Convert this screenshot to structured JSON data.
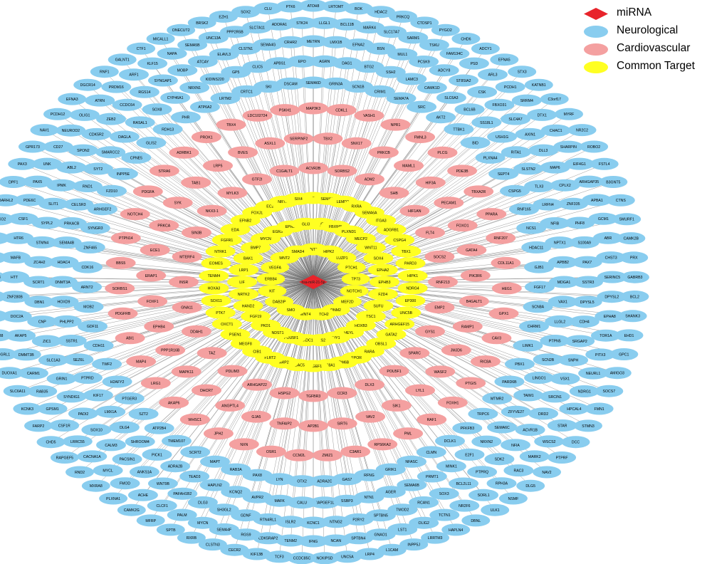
{
  "colors": {
    "mirna": "#e8242b",
    "neurological": "#89cdef",
    "cardiovascular": "#f4a0a0",
    "common": "#ffff22",
    "edge": "#6b6b6b"
  },
  "legend": [
    {
      "key": "mirna",
      "label": "miRNA",
      "shape": "diamond"
    },
    {
      "key": "neurological",
      "label": "Neurological",
      "shape": "ellipse"
    },
    {
      "key": "cardiovascular",
      "label": "Cardiovascular",
      "shape": "ellipse"
    },
    {
      "key": "common",
      "label": "Common Target",
      "shape": "ellipse"
    }
  ],
  "network": {
    "center": {
      "label": "hsa-miR-21-5p"
    },
    "common": [
      "WNT7B",
      "HIPK2",
      "LUZP1",
      "PTCH1",
      "TP73",
      "NOTCH1",
      "MEF2D",
      "DNM2",
      "NOTCH2",
      "WNT4",
      "SMO",
      "DAB2IP",
      "KIT",
      "ERBB4",
      "VEGFA",
      "WNT2",
      "SMAD4",
      "AQP1",
      "FBXW8",
      "PLXND1",
      "MECP2",
      "WNT11",
      "SOX4",
      "EPHA2",
      "EPHB3",
      "FZD4",
      "SUFU",
      "TSC1",
      "HOXB3",
      "HEYL",
      "THY1",
      "FRS2",
      "PLXDC1",
      "POU5F1",
      "NDST1",
      "PKD1",
      "FGF19",
      "HAND2",
      "NRTK2",
      "LIF",
      "LRP1",
      "BAK1",
      "BMP7",
      "MYCN",
      "EGR3",
      "EPHB2",
      "GLI3",
      "WNT3A",
      "SEMA3E",
      "LEMD2",
      "RXRA",
      "SEMA6A",
      "ITGA3",
      "ADGRB1",
      "CSPG4",
      "TBX1",
      "PARD3",
      "HIPK1",
      "NDRG4",
      "EP300",
      "UNC5B",
      "ARHGEF15",
      "GATA2",
      "OBSL1",
      "RARA",
      "EPOR",
      "KDM6B",
      "SLC8A1",
      "RAPGEF1",
      "HDAC5",
      "NRP2",
      "FLRT2",
      "CIB1",
      "MEGF8",
      "PSEN1",
      "OXCT1",
      "PTK7",
      "SOX11",
      "HOXA3",
      "TENM4",
      "EOMES",
      "NTRK1",
      "FGFR1",
      "EDA",
      "EFNB2",
      "FOXJ1",
      "EC2",
      "NRTK3",
      "SIX4"
    ],
    "cardiovascular": [
      "ACVR2B",
      "SORBS2",
      "ADM2",
      "SHB",
      "HIF1AN",
      "FLT4",
      "SOCS2",
      "RNF213",
      "EMP2",
      "GYS1",
      "SPARC",
      "POU5F1",
      "DLX3",
      "CCR3",
      "TGFBR3",
      "HSPG2",
      "ARHGAP22",
      "PDLIM3",
      "TAZ",
      "DDAH1",
      "GNA11",
      "INSR",
      "MTERF4",
      "SIN3B",
      "NKX3-1",
      "MYLK3",
      "GTF2I",
      "C1GALT1",
      "TBX2",
      "SNX17",
      "PRKCB",
      "MAML1",
      "HIF3A",
      "PECAM1",
      "FOXO1",
      "GATA4",
      "PIK3R6",
      "B4GALT1",
      "RAMP1",
      "JMJD6",
      "WASF2",
      "LYL1",
      "SIK1",
      "VAV2",
      "SIRT6",
      "AP2B1",
      "TNFAIP2",
      "GJA5",
      "ANGPTL4",
      "DHCR7",
      "MAPK11",
      "PPP1R16B",
      "EPHB4",
      "FOXF1",
      "ERAP1",
      "ECE1",
      "PRKCA",
      "SYK",
      "TAB1",
      "LRP5",
      "BVES",
      "ASXL1",
      "SERPINF2",
      "MAP3K3",
      "CDKL1",
      "VASH1",
      "NPR1",
      "FMNL3",
      "PLCG",
      "PDE3B",
      "TBXA2R",
      "PPARA",
      "RNF207",
      "COL11A1",
      "HEG1",
      "GPX1",
      "CAV3",
      "RIC8A",
      "PTGIS",
      "FOXH1",
      "RAF1",
      "PML",
      "RPS6KA2",
      "C3AR1",
      "ZMIZ1",
      "CCM2L",
      "OSR1",
      "NXN",
      "JPH2",
      "WHSC1",
      "AKAP6",
      "LRG1",
      "MAP4",
      "ABI1",
      "PDGFRB",
      "SORBS1",
      "BBS5",
      "PTPN14",
      "NOTCH4",
      "PDGFA",
      "STRA6",
      "ADRBK1",
      "PROK1",
      "TBX4",
      "LDC102724",
      "PSKH1"
    ],
    "neurological": [
      "SEMA6D",
      "GRIN3A",
      "SCN1B",
      "CRIM1",
      "SEMA7A",
      "SRC",
      "AKT2",
      "TTBK1",
      "BID",
      "PLXNA4",
      "SEPT4",
      "CSPG5",
      "RNF165",
      "NCS1",
      "HDAC11",
      "GJB1",
      "FGF17",
      "SCN8A",
      "CHRM1",
      "LIMK1",
      "PBX1",
      "PARD6B",
      "MTMR2",
      "TRPC6",
      "PFKFB3",
      "DCLK1",
      "CLMN",
      "NFASC",
      "GRIK1",
      "RFNG",
      "GAS7",
      "ADRA2C",
      "OTX2",
      "LYN",
      "PAX8",
      "RAB3A",
      "MAPT",
      "SCRT2",
      "TMEM107",
      "ATP2B4",
      "SZT2",
      "PTGER3",
      "H2AFY2",
      "TWF2",
      "CDH11",
      "GDF11",
      "MOB2",
      "ARNT2",
      "CDK16",
      "ZNF465",
      "SYNGR3",
      "ARHGEF2",
      "FZD10",
      "INPP5E",
      "CPNE5",
      "GLIS2",
      "RDH13",
      "PHR",
      "ATP6A2",
      "LRTM2",
      "CRTC1",
      "SKI",
      "DSCAM",
      "AGRN",
      "DAG1",
      "BTG2",
      "SSH2",
      "LAMC3",
      "CAMK1D",
      "SLC6A3",
      "BCL6B",
      "SS18L1",
      "USH1G",
      "RITA1",
      "SLSTN2",
      "TLX3",
      "LRFN4",
      "NFIB",
      "NPTX1",
      "APBB2",
      "MDGA1",
      "VAX1",
      "LLGL2",
      "PTPN5",
      "SCN2B",
      "LINGO1",
      "TAIM1",
      "ZFYVE27",
      "SEMA6C",
      "NRXN2",
      "E2F1",
      "MINK1",
      "PRMT1",
      "SEMA6B",
      "AGER",
      "NTN1",
      "SSBP3",
      "RAPGEF1L",
      "CALU",
      "MAFK",
      "AVPR2",
      "KCNQ2",
      "HAPLN2",
      "TEAD3",
      "ADRA2B",
      "PICK1",
      "SHROOM4",
      "DLG4",
      "LMX1A",
      "KIF17",
      "PTPRD",
      "SEZ6L",
      "SSTR1",
      "PHLPP2",
      "HOXD9",
      "DNMT3A",
      "HDAC4",
      "SEMA4B",
      "PRKACB",
      "CELSR3",
      "RND1",
      "SYT2",
      "SMARCC2",
      "DAGLA",
      "RASAL1",
      "SOX8",
      "CYP46A1",
      "NRXN1",
      "KIDINS220",
      "GP5",
      "CLIC5",
      "APBS1",
      "EPO",
      "METRN",
      "LMX1B",
      "EFNA2",
      "BSN",
      "MUL1",
      "PCSK9",
      "ADCY8",
      "ST8SIA2",
      "CSK",
      "FBXO31",
      "SLC4A7",
      "AXIN1",
      "DLL3",
      "MAP6",
      "CPLX2",
      "ZNF335",
      "PHF8",
      "S100A9",
      "PAX7",
      "SSTR3",
      "DPYSL5",
      "CDH4",
      "SRGAP2",
      "SNPH",
      "VSX1",
      "SRCIN1",
      "DRD2",
      "ACVR1B",
      "NFIA",
      "SDK2",
      "PTPRQ",
      "BCL2L11",
      "SOX3",
      "RCAN1",
      "TMOD2",
      "SPTBN5",
      "P2RY2",
      "NTNG2",
      "KCNC1",
      "ISLR2",
      "RTN4RL1",
      "GDNF",
      "SH3GL2",
      "DLG3",
      "PAFAH1B2",
      "WNT9B",
      "ANKS1A",
      "PACSIN1",
      "CALM3",
      "SOX10",
      "PADI2",
      "SYNDIG1",
      "GRIN1",
      "SLC1A3",
      "ZIC1",
      "CNP",
      "DBN1",
      "SCRT1",
      "ZC4H2",
      "STMN4",
      "SYPL2",
      "SLIT1",
      "IPMK",
      "ABL2",
      "SPON2",
      "CDK5R2",
      "ZEB2",
      "CCDC64",
      "RGS14",
      "SYNGAP1",
      "MOBP",
      "ATCAY",
      "ELAVL3",
      "CLSTN1",
      "SEMA4G",
      "CRHR2",
      "LLGL1",
      "BCL11B",
      "MARK4",
      "SLC17A7",
      "SARM1",
      "TSKU",
      "FAM134C",
      "PSD",
      "ARL3",
      "PCDH1",
      "SRRM4",
      "DTX1",
      "CHAC1",
      "SHARPIN",
      "EIF4G1",
      "ARHGAP35",
      "APBA1",
      "GCM1",
      "ABR",
      "CHST3",
      "SERINC5",
      "DPYSL2",
      "EPHA8",
      "TOR1A",
      "PITX3",
      "NEURL1",
      "NDRG1",
      "HPCAL4",
      "STAR",
      "WSCS2",
      "MARK2",
      "RAC3",
      "RPH3A",
      "SORL1",
      "NR2F6",
      "TCTN1",
      "OLIG2",
      "LST1",
      "GNAO1",
      "SPTBN4",
      "NCAN",
      "IFNG",
      "TENM2",
      "CDK5RAP2",
      "RGS9",
      "SEMA4F",
      "MYCN",
      "PALM",
      "CLCF1",
      "ACHE",
      "FMOD",
      "MYCL",
      "CACNA1A",
      "LRRC55",
      "CSF1R",
      "GPSM1",
      "RAB35",
      "CARM1",
      "DMMT3B",
      "AKAP5",
      "DOC2A",
      "ZNF280B",
      "HTT",
      "MAFB",
      "HTR6",
      "CSF1",
      "PDE6C",
      "PAX5",
      "UNK",
      "CD27",
      "NEUROD2",
      "OLIG1",
      "ATRN",
      "PRDM16",
      "ARF1",
      "KLF15",
      "NAPA",
      "SEMA5B",
      "UNC13A",
      "PPP2R5B",
      "SLC7A11",
      "ADORA1",
      "STK24",
      "ATOH8",
      "LRTOMT",
      "BOK",
      "HDAC2",
      "PRKCQ",
      "CTDSP1",
      "PYGO2",
      "CHD6",
      "ADCY1",
      "EFNA5",
      "STX3",
      "KATNB1",
      "C3orf17",
      "MYRF",
      "NR2C2",
      "ROBO2",
      "FSTL4",
      "B3GNT5",
      "CTNS",
      "SMURF1",
      "CAMK2B",
      "PRX",
      "GABRB3",
      "BCL2",
      "SHANK3",
      "EHD1",
      "GPC1",
      "AMIGO3",
      "SOCS7",
      "FMN1",
      "STMN3",
      "DCC",
      "PTPRF",
      "NAV2",
      "DLG5",
      "NSMF",
      "ULK1",
      "DBNL",
      "HAPLN4",
      "LRRTM3",
      "INPP5J",
      "L1CAM",
      "LRP4",
      "UNC5A",
      "NCKIPSD",
      "CCDC85C",
      "TCF3",
      "KIF13B",
      "CECR2",
      "CLSTN3",
      "RXRB",
      "SPTB",
      "MFRP",
      "CAMK2G",
      "PLXNA1",
      "MXRA8",
      "RND2",
      "RAPGEF5",
      "CHD5",
      "FARP2",
      "KCNK3",
      "SLC6A11",
      "DUOXA1",
      "ADGRL1",
      "STK38",
      "TNIK",
      "NKD1",
      "MAPK8IP3",
      "NCDN",
      "MTR",
      "FBXO2",
      "BARHL2",
      "DPF1",
      "PAX3",
      "GPR173",
      "NAV1",
      "PCDH12",
      "EFNA3",
      "DGCR14",
      "RNF1",
      "GALNT1",
      "CTF1",
      "MICALL1",
      "ONECUT2",
      "BRSK2",
      "EZH1",
      "SOX2",
      "CLU",
      "PTK6"
    ]
  }
}
